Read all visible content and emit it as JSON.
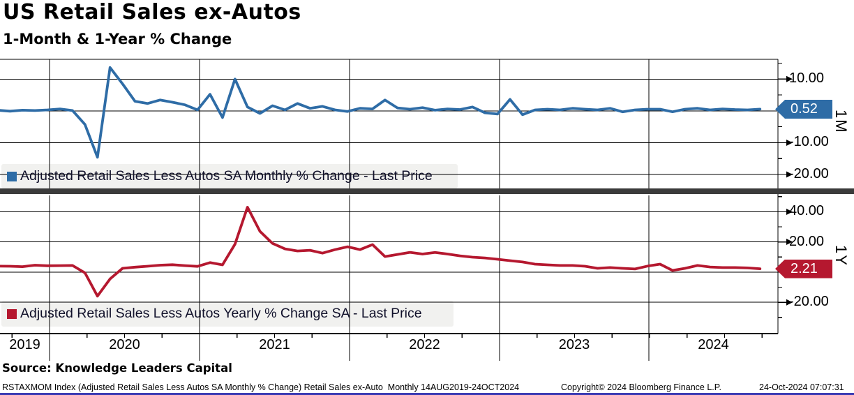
{
  "header": {
    "title": "US Retail Sales ex-Autos",
    "subtitle": "1-Month & 1-Year % Change"
  },
  "x_axis": {
    "year_labels": [
      "2019",
      "2020",
      "2021",
      "2022",
      "2023",
      "2024"
    ]
  },
  "chart_data": [
    {
      "type": "line",
      "panel": "top",
      "legend": "Adjusted Retail Sales Less Autos SA Monthly % Change - Last Price",
      "axis_label": "1M",
      "last_price": "0.52",
      "color": "#2e6ca6",
      "ylim": [
        -24.4,
        16.2
      ],
      "yticks": [
        {
          "value": 10,
          "label": "10.00"
        },
        {
          "value": 0,
          "label": ""
        },
        {
          "value": -10,
          "label": "-10.00"
        },
        {
          "value": -20,
          "label": "-20.00"
        }
      ],
      "minor_tick_step": 5,
      "x_start": "2019-08",
      "frequency": "monthly",
      "x_range": "14AUG2019-24OCT2024",
      "values": [
        0.2,
        -0.1,
        0.2,
        0.1,
        0.3,
        0.6,
        0.1,
        -4.3,
        -14.6,
        13.6,
        8.5,
        3.0,
        2.3,
        3.4,
        2.7,
        1.9,
        0.3,
        5.2,
        -2.1,
        10.0,
        1.2,
        -0.8,
        1.6,
        0.3,
        2.3,
        0.8,
        1.4,
        0.3,
        -0.2,
        0.8,
        0.6,
        3.4,
        0.9,
        0.5,
        1.0,
        0.2,
        0.6,
        0.4,
        1.2,
        -0.6,
        -1.0,
        3.6,
        -1.2,
        0.3,
        0.5,
        0.3,
        0.8,
        0.5,
        0.3,
        0.8,
        -0.3,
        0.3,
        0.5,
        0.5,
        -0.3,
        0.5,
        0.8,
        0.3,
        0.6,
        0.4,
        0.3,
        0.52
      ]
    },
    {
      "type": "line",
      "panel": "bottom",
      "legend": "Adjusted Retail Sales Less Autos Yearly % Change SA - Last Price",
      "axis_label": "1Y",
      "last_price": "2.21",
      "color": "#b5182f",
      "ylim": [
        -40.7,
        50.8
      ],
      "yticks": [
        {
          "value": 40,
          "label": "40.00"
        },
        {
          "value": 20,
          "label": "20.00"
        },
        {
          "value": 0,
          "label": ""
        },
        {
          "value": -20,
          "label": "-20.00"
        }
      ],
      "minor_tick_step": 10,
      "x_start": "2019-08",
      "frequency": "monthly",
      "x_range": "14AUG2019-24OCT2024",
      "values": [
        4.0,
        3.9,
        3.6,
        4.6,
        4.2,
        4.3,
        4.4,
        -0.5,
        -15.9,
        -4.5,
        2.5,
        3.3,
        3.9,
        4.6,
        4.9,
        4.3,
        3.8,
        6.3,
        4.8,
        18.5,
        43.0,
        27.0,
        19.0,
        15.4,
        14.0,
        14.5,
        12.6,
        14.9,
        16.8,
        14.9,
        18.2,
        10.3,
        11.7,
        13.1,
        12.0,
        13.0,
        12.0,
        10.8,
        9.9,
        9.4,
        8.5,
        7.6,
        6.7,
        5.3,
        4.8,
        4.4,
        4.4,
        3.9,
        2.5,
        3.0,
        2.5,
        2.1,
        4.0,
        5.3,
        1.1,
        2.5,
        4.4,
        3.4,
        3.0,
        3.0,
        2.8,
        2.21
      ]
    }
  ],
  "source_line": "Source: Knowledge Leaders Capital",
  "footer": {
    "description": "RSTAXMOM Index (Adjusted Retail Sales Less Autos SA Monthly % Change) Retail Sales ex-Auto  Monthly 14AUG2019-24OCT2024",
    "copyright": "Copyright© 2024 Bloomberg Finance L.P.",
    "timestamp": "24-Oct-2024 07:07:31"
  }
}
